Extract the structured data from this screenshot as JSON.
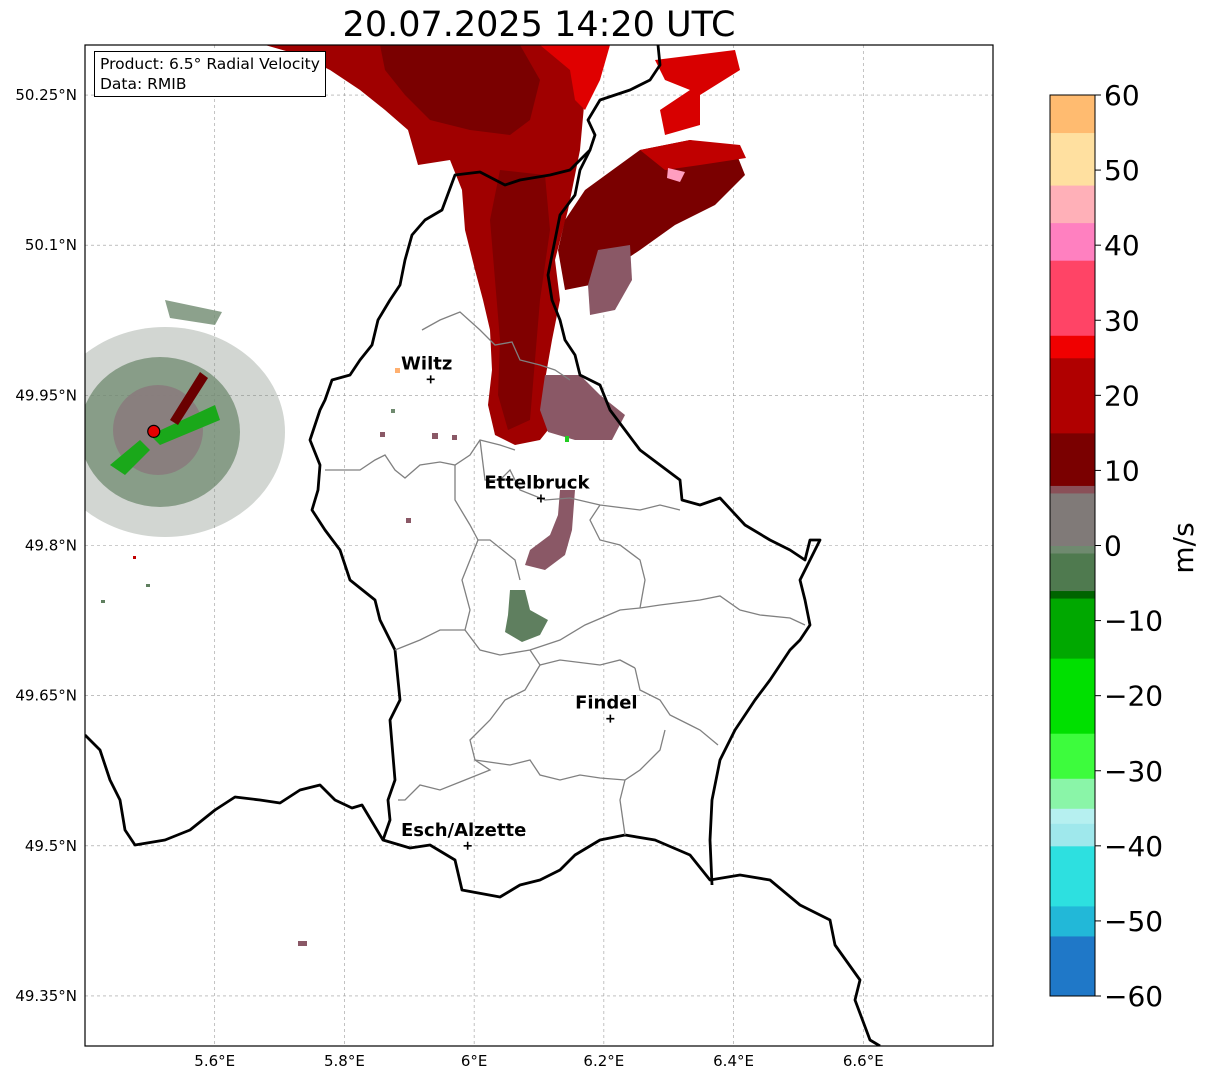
{
  "title": "20.07.2025 14:20 UTC",
  "info": {
    "product": "Product: 6.5° Radial Velocity",
    "data": "Data: RMIB"
  },
  "map": {
    "lon_range": [
      5.4,
      6.8
    ],
    "lat_range": [
      49.3,
      50.3
    ],
    "x_ticks": [
      {
        "value": 5.6,
        "label": "5.6°E"
      },
      {
        "value": 5.8,
        "label": "5.8°E"
      },
      {
        "value": 6.0,
        "label": "6°E"
      },
      {
        "value": 6.2,
        "label": "6.2°E"
      },
      {
        "value": 6.4,
        "label": "6.4°E"
      },
      {
        "value": 6.6,
        "label": "6.6°E"
      }
    ],
    "y_ticks": [
      {
        "value": 50.25,
        "label": "50.25°N"
      },
      {
        "value": 50.1,
        "label": "50.1°N"
      },
      {
        "value": 49.95,
        "label": "49.95°N"
      },
      {
        "value": 49.8,
        "label": "49.8°N"
      },
      {
        "value": 49.65,
        "label": "49.65°N"
      },
      {
        "value": 49.5,
        "label": "49.5°N"
      },
      {
        "value": 49.35,
        "label": "49.35°N"
      }
    ],
    "grid": true,
    "radar_site": {
      "lon": 5.506,
      "lat": 49.914,
      "color": "#e60000"
    },
    "cities": [
      {
        "name": "Wiltz",
        "lon": 5.933,
        "lat": 49.966
      },
      {
        "name": "Ettelbruck",
        "lon": 6.103,
        "lat": 49.847
      },
      {
        "name": "Findel",
        "lon": 6.21,
        "lat": 49.627
      },
      {
        "name": "Esch/Alzette",
        "lon": 5.99,
        "lat": 49.5
      }
    ]
  },
  "colorbar": {
    "unit": "m/s",
    "min": -60,
    "max": 60,
    "ticks": [
      {
        "value": 60,
        "label": "60"
      },
      {
        "value": 50,
        "label": "50"
      },
      {
        "value": 40,
        "label": "40"
      },
      {
        "value": 30,
        "label": "30"
      },
      {
        "value": 20,
        "label": "20"
      },
      {
        "value": 10,
        "label": "10"
      },
      {
        "value": 0,
        "label": "0"
      },
      {
        "value": -10,
        "label": "−10"
      },
      {
        "value": -20,
        "label": "−20"
      },
      {
        "value": -30,
        "label": "−30"
      },
      {
        "value": -40,
        "label": "−40"
      },
      {
        "value": -50,
        "label": "−50"
      },
      {
        "value": -60,
        "label": "−60"
      }
    ],
    "stops": [
      {
        "value": -60,
        "color": "#1f78c8"
      },
      {
        "value": -52,
        "color": "#22b8d8"
      },
      {
        "value": -48,
        "color": "#2de0e0"
      },
      {
        "value": -40,
        "color": "#9fe8ec"
      },
      {
        "value": -37,
        "color": "#b6f0f0"
      },
      {
        "value": -35,
        "color": "#8af5a8"
      },
      {
        "value": -31,
        "color": "#3dfc3d"
      },
      {
        "value": -25,
        "color": "#00e000"
      },
      {
        "value": -15,
        "color": "#00a800"
      },
      {
        "value": -7,
        "color": "#006400"
      },
      {
        "value": -6,
        "color": "#4f7a4f"
      },
      {
        "value": -1,
        "color": "#6f8a6f"
      },
      {
        "value": 0,
        "color": "#807a78"
      },
      {
        "value": 7,
        "color": "#8a5058"
      },
      {
        "value": 8,
        "color": "#7a0000"
      },
      {
        "value": 15,
        "color": "#b00000"
      },
      {
        "value": 25,
        "color": "#f00000"
      },
      {
        "value": 28,
        "color": "#ff4466"
      },
      {
        "value": 38,
        "color": "#ff80c0"
      },
      {
        "value": 43,
        "color": "#ffb0b8"
      },
      {
        "value": 48,
        "color": "#ffe0a0"
      },
      {
        "value": 55,
        "color": "#ffbb70"
      },
      {
        "value": 60,
        "color": "#ff9a50"
      }
    ]
  }
}
